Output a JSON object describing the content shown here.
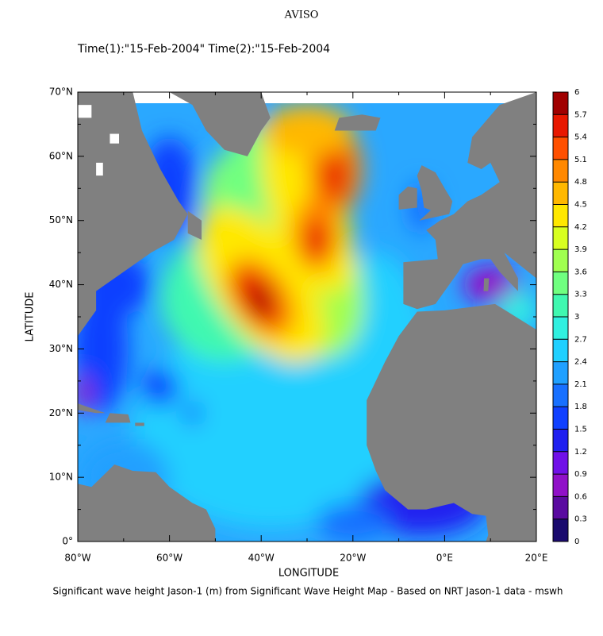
{
  "title": "AVISO",
  "subtitle": "Time(1):\"15-Feb-2004\" Time(2):\"15-Feb-2004",
  "x_axis": {
    "label": "LONGITUDE",
    "range": [
      -80,
      20
    ],
    "ticks": [
      {
        "value": -80,
        "label": "80°W"
      },
      {
        "value": -60,
        "label": "60°W"
      },
      {
        "value": -40,
        "label": "40°W"
      },
      {
        "value": -20,
        "label": "20°W"
      },
      {
        "value": 0,
        "label": "0°E"
      },
      {
        "value": 20,
        "label": "20°E"
      }
    ]
  },
  "y_axis": {
    "label": "LATITUDE",
    "range": [
      0,
      70
    ],
    "ticks": [
      {
        "value": 0,
        "label": "0°"
      },
      {
        "value": 10,
        "label": "10°N"
      },
      {
        "value": 20,
        "label": "20°N"
      },
      {
        "value": 30,
        "label": "30°N"
      },
      {
        "value": 40,
        "label": "40°N"
      },
      {
        "value": 50,
        "label": "50°N"
      },
      {
        "value": 60,
        "label": "60°N"
      },
      {
        "value": 70,
        "label": "70°N"
      }
    ]
  },
  "colorbar": {
    "levels": [
      0,
      0.3,
      0.6,
      0.9,
      1.2,
      1.5,
      1.8,
      2.1,
      2.4,
      2.7,
      3,
      3.3,
      3.6,
      3.9,
      4.2,
      4.5,
      4.8,
      5.1,
      5.4,
      5.7,
      6
    ],
    "colors": [
      "#1a0a6e",
      "#5a0aa0",
      "#9010c8",
      "#7010e8",
      "#2020f0",
      "#1040ff",
      "#1870ff",
      "#20a0ff",
      "#20d0ff",
      "#30f0e0",
      "#40f8b0",
      "#70ff80",
      "#a0ff50",
      "#d8ff20",
      "#ffe800",
      "#ffb800",
      "#ff8800",
      "#ff5000",
      "#e81800",
      "#a00000"
    ]
  },
  "caption": "Significant wave height Jason-1 (m) from Significant Wave Height Map - Based on NRT Jason-1 data - mswh"
}
